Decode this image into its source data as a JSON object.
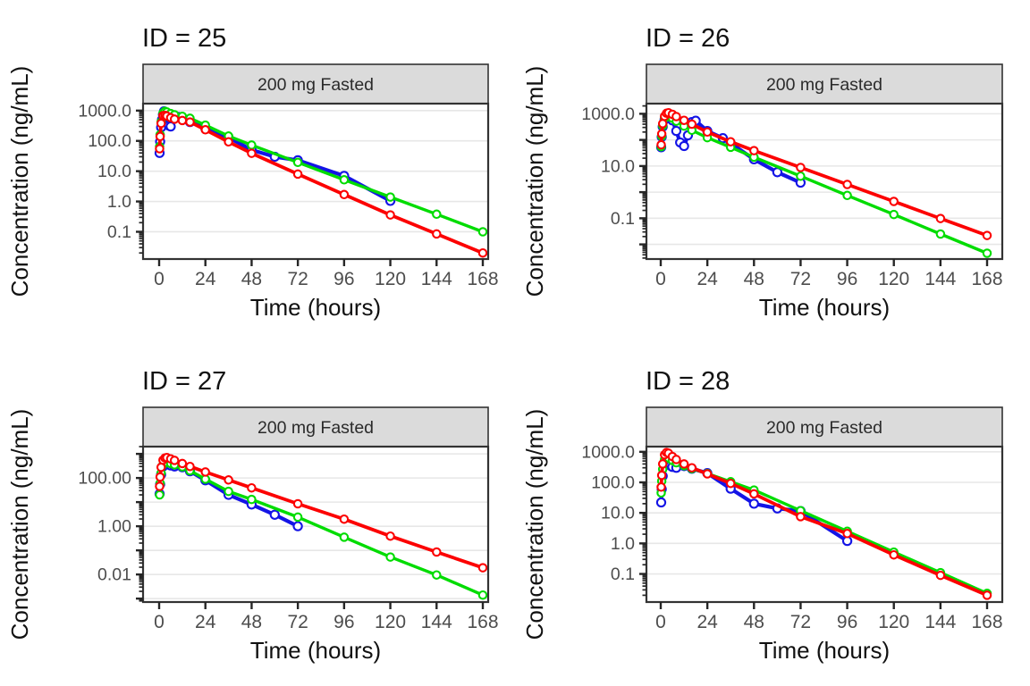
{
  "figure": {
    "xlabel": "Time (hours)",
    "ylabel": "Concentration (ng/mL)",
    "strip_label": "200 mg Fasted",
    "colors": {
      "blue": "#1414E6",
      "green": "#00DC00",
      "red": "#FC0000",
      "grid": "#E7E7E7",
      "strip_bg": "#DBDBDB",
      "panel_border": "#333333",
      "tick": "#262626",
      "tick_label": "#4D4D4D",
      "text": "#111111",
      "background": "#FFFFFF"
    }
  },
  "chart_data": [
    {
      "type": "line",
      "title": "ID = 25",
      "strip": "200 mg Fasted",
      "xlabel": "Time (hours)",
      "ylabel": "Concentration (ng/mL)",
      "log_y": true,
      "grid": "horizontal-decades",
      "legend": "none",
      "xlim": [
        0,
        168
      ],
      "ylim": [
        0.0126,
        1700
      ],
      "x_ticks": [
        0,
        24,
        48,
        72,
        96,
        120,
        144,
        168
      ],
      "y_tick_labels": [
        {
          "value": 1000,
          "label": "1000.0"
        },
        {
          "value": 100,
          "label": "100.0"
        },
        {
          "value": 10,
          "label": "10.0"
        },
        {
          "value": 1,
          "label": "1.0"
        },
        {
          "value": 0.1,
          "label": "0.1"
        }
      ],
      "series": [
        {
          "name": "series-blue",
          "color": "blue",
          "points": [
            [
              0.25,
              40
            ],
            [
              0.5,
              95
            ],
            [
              1,
              280
            ],
            [
              1.5,
              500
            ],
            [
              2,
              750
            ],
            [
              2.5,
              950
            ],
            [
              3,
              900
            ],
            [
              4,
              700
            ],
            [
              5,
              320
            ],
            [
              6,
              300
            ],
            [
              8,
              600
            ],
            [
              10,
              620
            ],
            [
              12,
              560
            ],
            [
              16,
              420
            ],
            [
              24,
              260
            ],
            [
              36,
              130
            ],
            [
              48,
              50
            ],
            [
              60,
              30
            ],
            [
              72,
              23
            ],
            [
              96,
              7
            ],
            [
              120,
              1.05
            ]
          ]
        },
        {
          "name": "series-green",
          "color": "green",
          "points": [
            [
              0.25,
              65
            ],
            [
              0.5,
              160
            ],
            [
              1,
              420
            ],
            [
              2,
              820
            ],
            [
              3,
              950
            ],
            [
              4,
              900
            ],
            [
              6,
              800
            ],
            [
              8,
              730
            ],
            [
              12,
              650
            ],
            [
              16,
              560
            ],
            [
              24,
              330
            ],
            [
              36,
              145
            ],
            [
              48,
              73
            ],
            [
              72,
              19.5
            ],
            [
              96,
              5.2
            ],
            [
              120,
              1.4
            ],
            [
              144,
              0.38
            ],
            [
              168,
              0.1
            ]
          ]
        },
        {
          "name": "series-red",
          "color": "red",
          "points": [
            [
              0.25,
              55
            ],
            [
              0.5,
              140
            ],
            [
              1,
              380
            ],
            [
              2,
              680
            ],
            [
              3,
              700
            ],
            [
              4,
              660
            ],
            [
              6,
              580
            ],
            [
              8,
              520
            ],
            [
              12,
              470
            ],
            [
              16,
              420
            ],
            [
              24,
              233
            ],
            [
              36,
              93
            ],
            [
              48,
              39
            ],
            [
              72,
              8
            ],
            [
              96,
              1.7
            ],
            [
              120,
              0.36
            ],
            [
              144,
              0.085
            ],
            [
              168,
              0.02
            ]
          ]
        }
      ]
    },
    {
      "type": "line",
      "title": "ID = 26",
      "strip": "200 mg Fasted",
      "xlabel": "Time (hours)",
      "ylabel": "Concentration (ng/mL)",
      "log_y": true,
      "grid": "horizontal-decades",
      "legend": "none",
      "xlim": [
        0,
        168
      ],
      "ylim": [
        0.00275,
        2450
      ],
      "x_ticks": [
        0,
        24,
        48,
        72,
        96,
        120,
        144,
        168
      ],
      "y_tick_labels": [
        {
          "value": 1000,
          "label": "1000.0"
        },
        {
          "value": 10,
          "label": "10.0"
        },
        {
          "value": 0.1,
          "label": "0.1"
        }
      ],
      "series": [
        {
          "name": "series-blue",
          "color": "blue",
          "points": [
            [
              0.25,
              52
            ],
            [
              0.5,
              130
            ],
            [
              1,
              320
            ],
            [
              2,
              600
            ],
            [
              3,
              780
            ],
            [
              4,
              800
            ],
            [
              5,
              700
            ],
            [
              6,
              560
            ],
            [
              8,
              220
            ],
            [
              10,
              80
            ],
            [
              12,
              58
            ],
            [
              14,
              150
            ],
            [
              16,
              480
            ],
            [
              18,
              540
            ],
            [
              24,
              220
            ],
            [
              32,
              116
            ],
            [
              36,
              75
            ],
            [
              48,
              18
            ],
            [
              60,
              5.8
            ],
            [
              72,
              2.3
            ]
          ]
        },
        {
          "name": "series-green",
          "color": "green",
          "points": [
            [
              0.25,
              55
            ],
            [
              0.5,
              140
            ],
            [
              1,
              350
            ],
            [
              2,
              680
            ],
            [
              3,
              850
            ],
            [
              4,
              820
            ],
            [
              6,
              680
            ],
            [
              8,
              520
            ],
            [
              12,
              340
            ],
            [
              16,
              235
            ],
            [
              24,
              122
            ],
            [
              36,
              52
            ],
            [
              48,
              22
            ],
            [
              72,
              4.1
            ],
            [
              96,
              0.75
            ],
            [
              120,
              0.14
            ],
            [
              144,
              0.025
            ],
            [
              168,
              0.0046
            ]
          ]
        },
        {
          "name": "series-red",
          "color": "red",
          "points": [
            [
              0.25,
              65
            ],
            [
              0.5,
              170
            ],
            [
              1,
              420
            ],
            [
              2,
              800
            ],
            [
              3,
              1050
            ],
            [
              4,
              1100
            ],
            [
              6,
              950
            ],
            [
              8,
              780
            ],
            [
              12,
              560
            ],
            [
              16,
              400
            ],
            [
              24,
              200
            ],
            [
              36,
              85
            ],
            [
              48,
              39
            ],
            [
              72,
              8.8
            ],
            [
              96,
              1.97
            ],
            [
              120,
              0.44
            ],
            [
              144,
              0.098
            ],
            [
              168,
              0.022
            ]
          ]
        }
      ]
    },
    {
      "type": "line",
      "title": "ID = 27",
      "strip": "200 mg Fasted",
      "xlabel": "Time (hours)",
      "ylabel": "Concentration (ng/mL)",
      "log_y": true,
      "grid": "horizontal-decades",
      "legend": "none",
      "xlim": [
        0,
        168
      ],
      "ylim": [
        0.00072,
        2000
      ],
      "x_ticks": [
        0,
        24,
        48,
        72,
        96,
        120,
        144,
        168
      ],
      "y_tick_labels": [
        {
          "value": 100,
          "label": "100.00"
        },
        {
          "value": 1,
          "label": "1.00"
        },
        {
          "value": 0.01,
          "label": "0.01"
        }
      ],
      "series": [
        {
          "name": "series-blue",
          "color": "blue",
          "points": [
            [
              0.25,
              22
            ],
            [
              0.5,
              55
            ],
            [
              1,
              140
            ],
            [
              2,
              300
            ],
            [
              3,
              390
            ],
            [
              4,
              400
            ],
            [
              5,
              360
            ],
            [
              6,
              330
            ],
            [
              8,
              300
            ],
            [
              12,
              280
            ],
            [
              16,
              190
            ],
            [
              24,
              80
            ],
            [
              36,
              20
            ],
            [
              48,
              8
            ],
            [
              60,
              3
            ],
            [
              72,
              1.0
            ]
          ]
        },
        {
          "name": "series-green",
          "color": "green",
          "points": [
            [
              0.25,
              20
            ],
            [
              0.5,
              60
            ],
            [
              1,
              160
            ],
            [
              2,
              350
            ],
            [
              3,
              440
            ],
            [
              4,
              450
            ],
            [
              6,
              400
            ],
            [
              8,
              350
            ],
            [
              12,
              290
            ],
            [
              16,
              200
            ],
            [
              24,
              90
            ],
            [
              36,
              28
            ],
            [
              48,
              13
            ],
            [
              72,
              2.4
            ],
            [
              96,
              0.35
            ],
            [
              120,
              0.053
            ],
            [
              144,
              0.0095
            ],
            [
              168,
              0.0014
            ]
          ]
        },
        {
          "name": "series-red",
          "color": "red",
          "points": [
            [
              0.25,
              45
            ],
            [
              0.5,
              110
            ],
            [
              1,
              280
            ],
            [
              2,
              550
            ],
            [
              3,
              680
            ],
            [
              4,
              700
            ],
            [
              6,
              620
            ],
            [
              8,
              540
            ],
            [
              12,
              400
            ],
            [
              16,
              300
            ],
            [
              24,
              178
            ],
            [
              36,
              83
            ],
            [
              48,
              39
            ],
            [
              72,
              8.5
            ],
            [
              96,
              1.97
            ],
            [
              120,
              0.39
            ],
            [
              144,
              0.085
            ],
            [
              168,
              0.019
            ]
          ]
        }
      ]
    },
    {
      "type": "line",
      "title": "ID = 28",
      "strip": "200 mg Fasted",
      "xlabel": "Time (hours)",
      "ylabel": "Concentration (ng/mL)",
      "log_y": true,
      "grid": "horizontal-decades",
      "legend": "none",
      "xlim": [
        0,
        168
      ],
      "ylim": [
        0.012,
        1480
      ],
      "x_ticks": [
        0,
        24,
        48,
        72,
        96,
        120,
        144,
        168
      ],
      "y_tick_labels": [
        {
          "value": 1000,
          "label": "1000.0"
        },
        {
          "value": 100,
          "label": "100.0"
        },
        {
          "value": 10,
          "label": "10.0"
        },
        {
          "value": 1,
          "label": "1.0"
        },
        {
          "value": 0.1,
          "label": "0.1"
        }
      ],
      "series": [
        {
          "name": "series-blue",
          "color": "blue",
          "points": [
            [
              0.25,
              22
            ],
            [
              0.5,
              60
            ],
            [
              1,
              160
            ],
            [
              2,
              380
            ],
            [
              3,
              460
            ],
            [
              4,
              430
            ],
            [
              5,
              350
            ],
            [
              6,
              320
            ],
            [
              8,
              300
            ],
            [
              12,
              340
            ],
            [
              16,
              280
            ],
            [
              24,
              200
            ],
            [
              36,
              62
            ],
            [
              48,
              20
            ],
            [
              60,
              14
            ],
            [
              72,
              11.5
            ],
            [
              96,
              1.2
            ]
          ]
        },
        {
          "name": "series-green",
          "color": "green",
          "points": [
            [
              0.25,
              45
            ],
            [
              0.5,
              110
            ],
            [
              1,
              270
            ],
            [
              2,
              560
            ],
            [
              3,
              660
            ],
            [
              4,
              630
            ],
            [
              6,
              520
            ],
            [
              8,
              440
            ],
            [
              12,
              350
            ],
            [
              16,
              280
            ],
            [
              24,
              195
            ],
            [
              36,
              105
            ],
            [
              48,
              56
            ],
            [
              72,
              11.8
            ],
            [
              96,
              2.5
            ],
            [
              120,
              0.52
            ],
            [
              144,
              0.11
            ],
            [
              168,
              0.023
            ]
          ]
        },
        {
          "name": "series-red",
          "color": "red",
          "points": [
            [
              0.25,
              70
            ],
            [
              0.5,
              170
            ],
            [
              1,
              400
            ],
            [
              2,
              800
            ],
            [
              3,
              950
            ],
            [
              4,
              900
            ],
            [
              6,
              700
            ],
            [
              8,
              560
            ],
            [
              12,
              400
            ],
            [
              16,
              300
            ],
            [
              24,
              190
            ],
            [
              36,
              92
            ],
            [
              48,
              42
            ],
            [
              72,
              7.5
            ],
            [
              96,
              2.1
            ],
            [
              120,
              0.42
            ],
            [
              144,
              0.09
            ],
            [
              168,
              0.02
            ]
          ]
        }
      ]
    }
  ]
}
